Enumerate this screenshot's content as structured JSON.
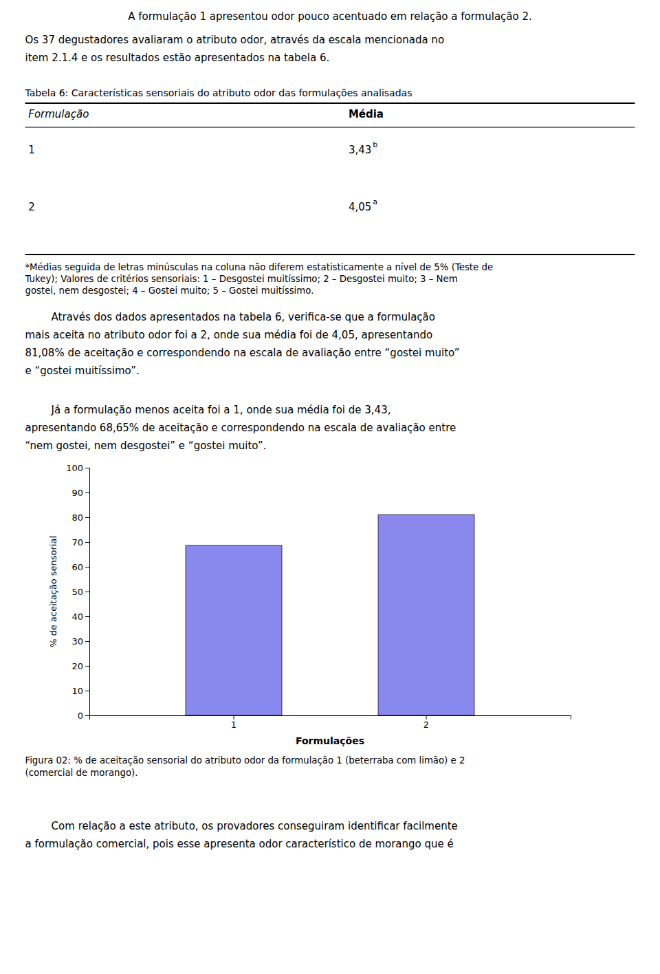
{
  "chart_data": {
    "type": "bar",
    "categories": [
      "1",
      "2"
    ],
    "values": [
      68.65,
      81.08
    ],
    "color": "#8888ee",
    "xlabel": "Formulações",
    "ylabel": "% de aceitação sensorial",
    "ylim": [
      0,
      100
    ],
    "yticks": [
      0,
      10,
      20,
      30,
      40,
      50,
      60,
      70,
      80,
      90,
      100
    ],
    "grid": false
  },
  "page": {
    "intro": "A formulação 1 apresentou odor pouco acentuado em relação a formulação 2.",
    "para2": [
      "Os 37 degustadores avaliaram o atributo odor, através da escala mencionada no",
      "item 2.1.4 e os resultados estão apresentados na tabela 6."
    ],
    "table": {
      "caption": "Tabela 6: Características sensoriais do atributo odor das formulações analisadas",
      "header": [
        "Formulação",
        "Média"
      ],
      "rows": [
        {
          "cells": [
            "1",
            "3,43"
          ],
          "note": "b"
        },
        {
          "cells": [
            "2",
            "4,05"
          ],
          "note": "a"
        }
      ],
      "footnote": [
        "*Médias seguida de letras minúsculas na coluna não diferem estatisticamente a nível de 5% (Teste de",
        "Tukey); Valores de critérios sensoriais: 1 – Desgostei muitíssimo; 2 – Desgostei muito; 3 – Nem",
        "gostei, nem desgostei; 4 – Gostei muito; 5 – Gostei muitíssimo."
      ]
    },
    "body1": [
      "        Através dos dados apresentados na tabela 6, verifica-se que a formulação",
      "mais aceita no atributo odor foi a 2, onde sua média foi de 4,05, apresentando",
      "81,08% de aceitação e correspondendo na escala de avaliação entre “gostei muito”",
      "e “gostei muitíssimo”."
    ],
    "body2": [
      "        Já a formulação menos aceita foi a 1, onde sua média foi de 3,43,",
      "apresentando 68,65% de aceitação e correspondendo na escala de avaliação entre",
      "“nem gostei, nem desgostei” e “gostei muito”."
    ],
    "figure_caption": [
      "Figura 02: % de aceitação sensorial do atributo odor da formulação 1 (beterraba com limão) e 2",
      "(comercial de morango)."
    ],
    "closing": [
      "        Com relação a este atributo, os provadores conseguiram identificar facilmente",
      "a formulação comercial, pois esse apresenta odor característico de morango que é"
    ]
  }
}
